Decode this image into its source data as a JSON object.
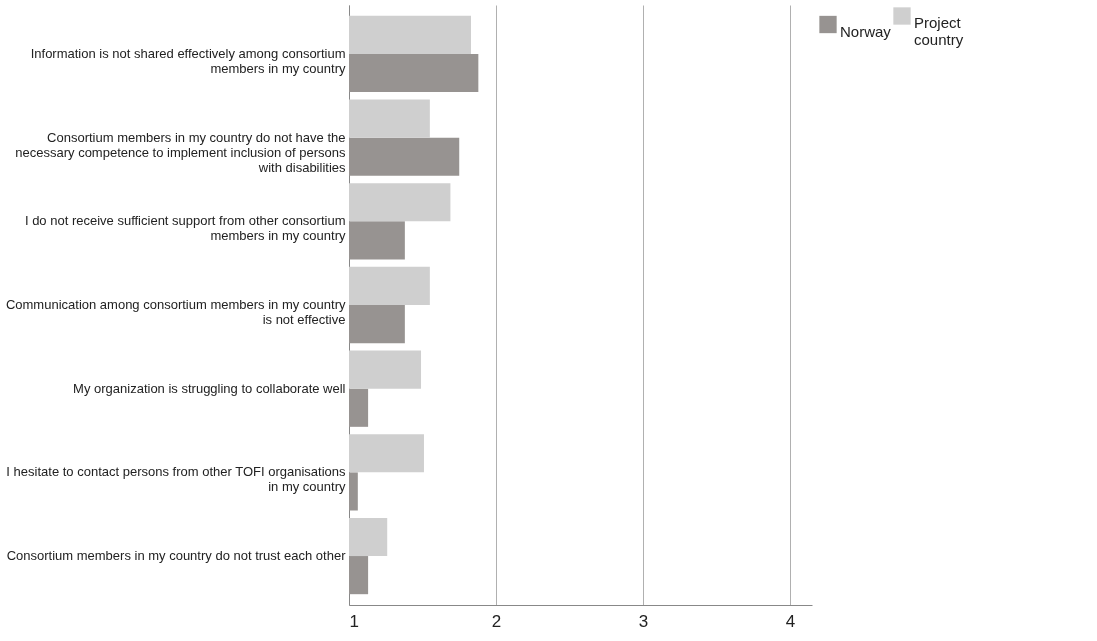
{
  "chart_data": {
    "type": "bar",
    "orientation": "horizontal",
    "categories": [
      "Information is not shared effectively among consortium members in my country",
      "Consortium members in my country do not have the necessary competence to implement inclusion of persons with disabilities",
      "I do not receive sufficient support from other consortium members in my country",
      "Communication among consortium members in my country is not effective",
      "My organization is struggling to collaborate well",
      "I hesitate to contact persons from other TOFI organisations in my country",
      "Consortium members in my country do not trust each other"
    ],
    "series": [
      {
        "name": "Norway",
        "color": "#979391",
        "values": [
          1.88,
          1.75,
          1.38,
          1.38,
          1.13,
          1.06,
          1.13
        ]
      },
      {
        "name": "Project country",
        "color": "#cfcfcf",
        "values": [
          1.83,
          1.55,
          1.69,
          1.55,
          1.49,
          1.51,
          1.26
        ]
      }
    ],
    "xlim": [
      1,
      4.15
    ],
    "xticks": [
      1,
      2,
      3,
      4
    ],
    "grid": "x",
    "legend": "top right"
  }
}
